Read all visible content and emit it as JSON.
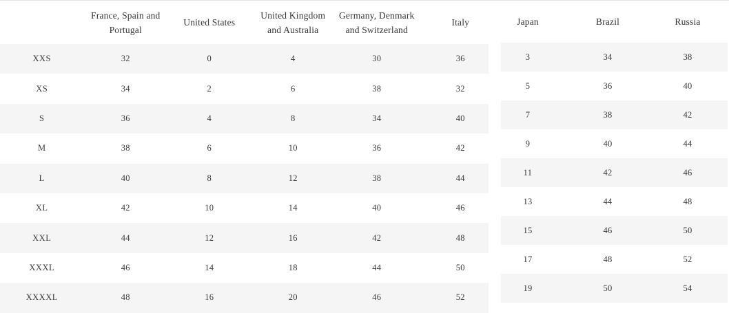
{
  "colors": {
    "background": "#ffffff",
    "stripe": "#f5f5f5",
    "text": "#3b3b3b",
    "header_text": "#353535",
    "top_border": "#e3e3e3"
  },
  "size_table": {
    "left": {
      "corner_label": "",
      "columns": [
        {
          "label": "France, Spain and Portugal",
          "lines": [
            "France, Spain and",
            "Portugal"
          ]
        },
        {
          "label": "United States",
          "lines": [
            "United States"
          ]
        },
        {
          "label": "United Kingdom and Australia",
          "lines": [
            "United Kingdom",
            "and Australia"
          ]
        },
        {
          "label": "Germany, Denmark and Switzerland",
          "lines": [
            "Germany, Denmark",
            "and Switzerland"
          ]
        },
        {
          "label": "Italy",
          "lines": [
            "Italy"
          ]
        }
      ],
      "rows": [
        {
          "size": "XXS",
          "values": [
            "32",
            "0",
            "4",
            "30",
            "36"
          ]
        },
        {
          "size": "XS",
          "values": [
            "34",
            "2",
            "6",
            "38",
            "32"
          ]
        },
        {
          "size": "S",
          "values": [
            "36",
            "4",
            "8",
            "34",
            "40"
          ]
        },
        {
          "size": "M",
          "values": [
            "38",
            "6",
            "10",
            "36",
            "42"
          ]
        },
        {
          "size": "L",
          "values": [
            "40",
            "8",
            "12",
            "38",
            "44"
          ]
        },
        {
          "size": "XL",
          "values": [
            "42",
            "10",
            "14",
            "40",
            "46"
          ]
        },
        {
          "size": "XXL",
          "values": [
            "44",
            "12",
            "16",
            "42",
            "48"
          ]
        },
        {
          "size": "XXXL",
          "values": [
            "46",
            "14",
            "18",
            "44",
            "50"
          ]
        },
        {
          "size": "XXXXL",
          "values": [
            "48",
            "16",
            "20",
            "46",
            "52"
          ]
        }
      ]
    },
    "right": {
      "columns": [
        {
          "label": "Japan",
          "lines": [
            "Japan"
          ]
        },
        {
          "label": "Brazil",
          "lines": [
            "Brazil"
          ]
        },
        {
          "label": "Russia",
          "lines": [
            "Russia"
          ]
        }
      ],
      "rows": [
        {
          "values": [
            "3",
            "34",
            "38"
          ]
        },
        {
          "values": [
            "5",
            "36",
            "40"
          ]
        },
        {
          "values": [
            "7",
            "38",
            "42"
          ]
        },
        {
          "values": [
            "9",
            "40",
            "44"
          ]
        },
        {
          "values": [
            "11",
            "42",
            "46"
          ]
        },
        {
          "values": [
            "13",
            "44",
            "48"
          ]
        },
        {
          "values": [
            "15",
            "46",
            "50"
          ]
        },
        {
          "values": [
            "17",
            "48",
            "52"
          ]
        },
        {
          "values": [
            "19",
            "50",
            "54"
          ]
        }
      ]
    }
  }
}
